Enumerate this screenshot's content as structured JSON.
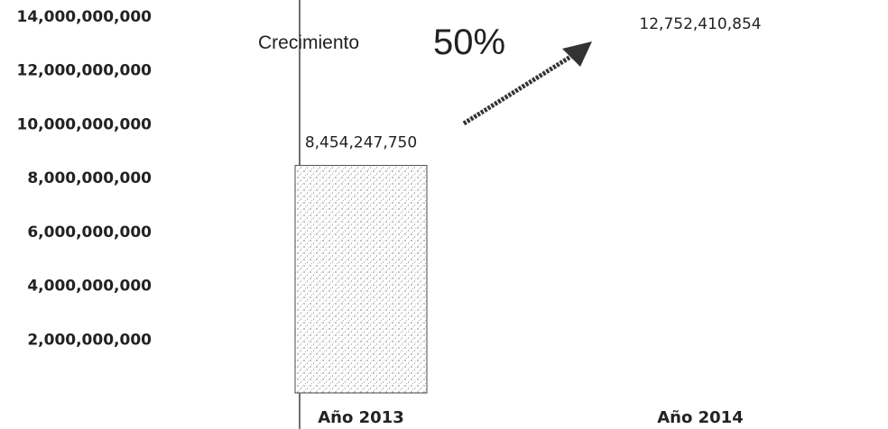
{
  "chart_data": {
    "type": "bar",
    "title": "",
    "xlabel": "",
    "ylabel": "",
    "categories": [
      "Año 2013",
      "Año 2014"
    ],
    "values": [
      8454247750,
      12752410854
    ],
    "value_labels": [
      "8,454,247,750",
      "12,752,410,854"
    ],
    "ylim": [
      0,
      14000000000
    ],
    "yticks": [
      "14,000,000,000",
      "12,000,000,000",
      "10,000,000,000",
      "8,000,000,000",
      "6,000,000,000",
      "4,000,000,000",
      "2,000,000,000"
    ],
    "grid": false,
    "annotation": {
      "label": "Crecimiento",
      "percent": "50%"
    },
    "colors": {
      "bar": "#c8c8c8",
      "axis": "#222222",
      "arrow": "#333333"
    }
  }
}
